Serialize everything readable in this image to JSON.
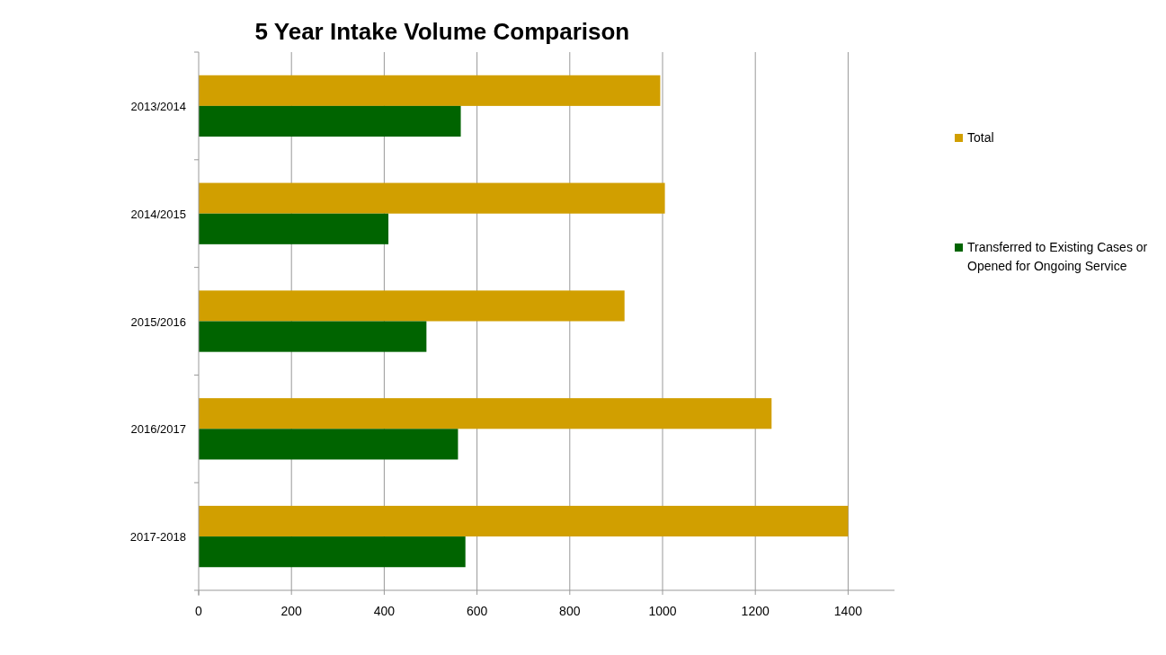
{
  "chart_data": {
    "type": "bar",
    "orientation": "horizontal",
    "title": "5 Year Intake Volume Comparison",
    "categories": [
      "2013/2014",
      "2014/2015",
      "2015/2016",
      "2016/2017",
      "2017-2018"
    ],
    "series": [
      {
        "name": "Total",
        "color": "#d19f00",
        "values": [
          995,
          1005,
          918,
          1235,
          1400
        ]
      },
      {
        "name": "Transferred to Existing Cases or Opened for Ongoing Service",
        "color": "#006400",
        "values": [
          565,
          409,
          491,
          559,
          575
        ]
      }
    ],
    "xlim": [
      0,
      1500
    ],
    "xticks": [
      0,
      200,
      400,
      600,
      800,
      1000,
      1200,
      1400
    ],
    "grid": "x",
    "legend": "right"
  }
}
